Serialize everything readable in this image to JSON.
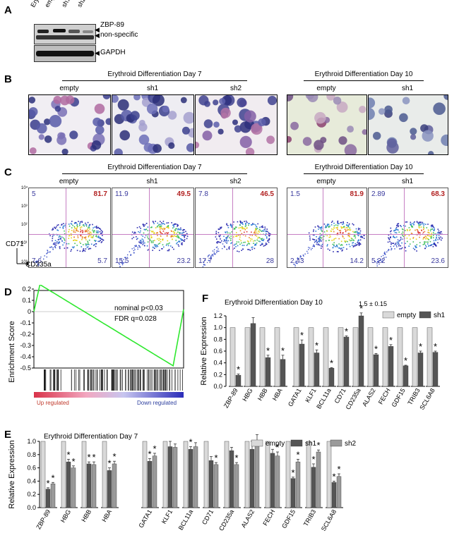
{
  "panels": {
    "A": "A",
    "B": "B",
    "C": "C",
    "D": "D",
    "E": "E",
    "F": "F"
  },
  "panel_a": {
    "lanes": [
      "EryP",
      "empty",
      "sh1",
      "sh2"
    ],
    "band_labels": [
      "ZBP-89",
      "non-specific",
      "GAPDH"
    ]
  },
  "panel_b": {
    "group1_title": "Erythroid Differentiation Day 7",
    "group2_title": "Erythroid Differentiation Day 10",
    "group1_labels": [
      "empty",
      "sh1",
      "sh2"
    ],
    "group2_labels": [
      "empty",
      "sh1"
    ]
  },
  "panel_c": {
    "group1_title": "Erythroid Differentiation Day 7",
    "group2_title": "Erythroid Differentiation Day 10",
    "y_axis": "CD71",
    "x_axis": "CD235a",
    "plots": [
      {
        "label": "empty",
        "ul": "5",
        "ur": "81.7",
        "ll": "7.6",
        "lr": "5.7"
      },
      {
        "label": "sh1",
        "ul": "11.9",
        "ur": "49.5",
        "ll": "15.5",
        "lr": "23.2"
      },
      {
        "label": "sh2",
        "ul": "7.8",
        "ur": "46.5",
        "ll": "17.7",
        "lr": "28"
      },
      {
        "label": "empty",
        "ul": "1.5",
        "ur": "81.9",
        "ll": "2.43",
        "lr": "14.2"
      },
      {
        "label": "sh1",
        "ul": "2.89",
        "ur": "68.3",
        "ll": "5.22",
        "lr": "23.6"
      }
    ],
    "ticks": [
      "10⁴",
      "10³",
      "10²",
      "10¹",
      "10⁰"
    ]
  },
  "panel_d": {
    "ylabel": "Enrichment Score",
    "y_ticks": [
      "0.2",
      "0.1",
      "0",
      "-0.1",
      "-0.2",
      "-0.3",
      "-0.4",
      "-0.5"
    ],
    "stat1": "nominal p<0.03",
    "stat2": "FDR q=0.028",
    "up_label": "Up regulated",
    "down_label": "Down regulated"
  },
  "chart_data": [
    {
      "type": "bar",
      "panel": "E",
      "title": "Erythroid Differentiation Day 7",
      "ylabel": "Relative Expression",
      "ylim": [
        0,
        1.0
      ],
      "y_ticks": [
        "0.0",
        "0.2",
        "0.4",
        "0.6",
        "0.8",
        "1.0"
      ],
      "categories": [
        "ZBP-89",
        "HBG",
        "HBB",
        "HBA",
        "GATA1",
        "KLF1",
        "BCL11a",
        "CD71",
        "CD235a",
        "ALAS2",
        "FECH",
        "GDF15",
        "TRIB3",
        "SCL6A8"
      ],
      "series": [
        {
          "name": "empty",
          "color": "#d9d9d9",
          "values": [
            1,
            1,
            1,
            1,
            1,
            1,
            1,
            1,
            1,
            1,
            1,
            1,
            1,
            1
          ],
          "errors": [
            0,
            0,
            0,
            0,
            0,
            0,
            0,
            0,
            0,
            0,
            0,
            0,
            0,
            0
          ]
        },
        {
          "name": "sh1",
          "color": "#555555",
          "values": [
            0.28,
            0.69,
            0.66,
            0.56,
            0.7,
            0.92,
            0.88,
            0.71,
            0.86,
            0.88,
            0.82,
            0.44,
            0.61,
            0.38
          ],
          "errors": [
            0.02,
            0.04,
            0.03,
            0.04,
            0.04,
            0.08,
            0.04,
            0.06,
            0.05,
            0.12,
            0.06,
            0.02,
            0.05,
            0.02
          ]
        },
        {
          "name": "sh2",
          "color": "#9a9a9a",
          "values": [
            0.36,
            0.6,
            0.65,
            0.66,
            0.78,
            0.91,
            0.92,
            0.65,
            0.65,
            1.0,
            0.78,
            0.69,
            0.84,
            0.47
          ],
          "errors": [
            0.02,
            0.03,
            0.04,
            0.04,
            0.04,
            0.05,
            0.06,
            0.03,
            0.03,
            0.1,
            0.06,
            0.04,
            0.03,
            0.04
          ]
        }
      ],
      "significant": [
        [
          false,
          true,
          true
        ],
        [
          false,
          true,
          true
        ],
        [
          false,
          true,
          true
        ],
        [
          false,
          true,
          true
        ],
        [
          false,
          true,
          true
        ],
        [
          false,
          false,
          false
        ],
        [
          false,
          true,
          false
        ],
        [
          false,
          false,
          true
        ],
        [
          false,
          false,
          true
        ],
        [
          false,
          false,
          false
        ],
        [
          false,
          false,
          true
        ],
        [
          false,
          true,
          true
        ],
        [
          false,
          true,
          true
        ],
        [
          false,
          true,
          true
        ]
      ],
      "legend_position": "top-right"
    },
    {
      "type": "bar",
      "panel": "F",
      "title": "Erythroid Differentiation Day 10",
      "ylabel": "Relative Expression",
      "ylim": [
        0,
        1.2
      ],
      "y_ticks": [
        "0.0",
        "0.2",
        "0.4",
        "0.6",
        "0.8",
        "1.0",
        "1.2"
      ],
      "categories": [
        "ZBP-89",
        "HBG",
        "HBB",
        "HBA",
        "GATA1",
        "KLF1",
        "BCL11a",
        "CD71",
        "CD235a",
        "ALAS2",
        "FECH",
        "GDF15",
        "TRIB3",
        "SCL6A8"
      ],
      "series": [
        {
          "name": "empty",
          "color": "#d9d9d9",
          "values": [
            1,
            1,
            1,
            1,
            1,
            1,
            1,
            1,
            1,
            1,
            1,
            1,
            1,
            1
          ],
          "errors": [
            0,
            0,
            0,
            0,
            0,
            0,
            0,
            0,
            0,
            0,
            0,
            0,
            0,
            0
          ]
        },
        {
          "name": "sh1",
          "color": "#555555",
          "values": [
            0.19,
            1.07,
            0.49,
            0.46,
            0.72,
            0.57,
            0.31,
            0.84,
            1.2,
            0.54,
            0.68,
            0.35,
            0.57,
            0.58
          ],
          "errors": [
            0.02,
            0.1,
            0.04,
            0.07,
            0.07,
            0.05,
            0.01,
            0.02,
            0.05,
            0.02,
            0.03,
            0.01,
            0.03,
            0.02
          ]
        }
      ],
      "significant": [
        [
          false,
          true
        ],
        [
          false,
          false
        ],
        [
          false,
          true
        ],
        [
          false,
          true
        ],
        [
          false,
          true
        ],
        [
          false,
          true
        ],
        [
          false,
          true
        ],
        [
          false,
          true
        ],
        [
          false,
          true
        ],
        [
          false,
          true
        ],
        [
          false,
          true
        ],
        [
          false,
          true
        ],
        [
          false,
          true
        ],
        [
          false,
          true
        ]
      ],
      "annotation": "1.5 ± 0.15",
      "legend_position": "top-right"
    }
  ]
}
